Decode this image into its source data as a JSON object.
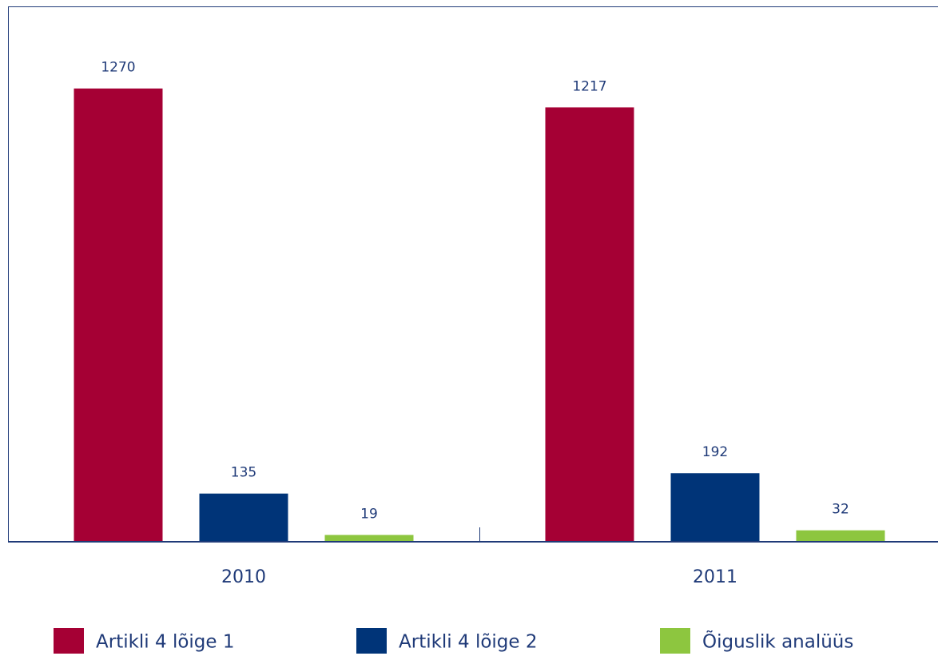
{
  "chart_data": {
    "type": "bar",
    "categories": [
      "2010",
      "2011"
    ],
    "series": [
      {
        "name": "Artikli 4 lõige 1",
        "color": "#a50034",
        "values": [
          1270,
          1217
        ]
      },
      {
        "name": "Artikli 4 lõige 2",
        "color": "#003478",
        "values": [
          135,
          192
        ]
      },
      {
        "name": "Õiguslik analüüs",
        "color": "#8dc63f",
        "values": [
          19,
          32
        ]
      }
    ],
    "ylim": [
      0,
      1500
    ]
  }
}
